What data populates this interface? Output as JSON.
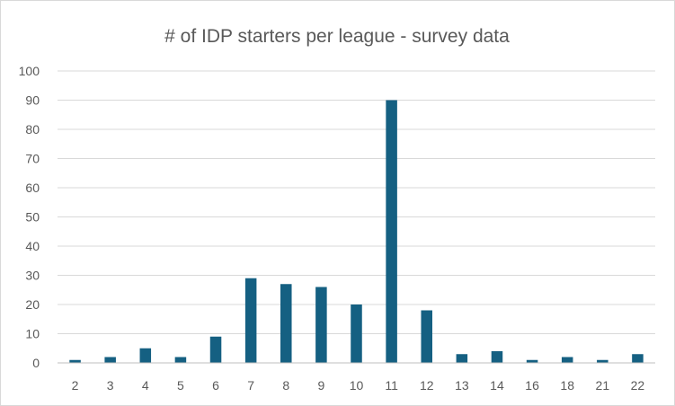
{
  "chart_data": {
    "type": "bar",
    "title": "# of IDP starters per league - survey data",
    "xlabel": "",
    "ylabel": "",
    "categories": [
      "2",
      "3",
      "4",
      "5",
      "6",
      "7",
      "8",
      "9",
      "10",
      "11",
      "12",
      "13",
      "14",
      "16",
      "18",
      "21",
      "22"
    ],
    "values": [
      1,
      2,
      5,
      2,
      9,
      29,
      27,
      26,
      20,
      90,
      18,
      3,
      4,
      1,
      2,
      1,
      3
    ],
    "ylim": [
      0,
      100
    ],
    "yticks": [
      "0",
      "10",
      "20",
      "30",
      "40",
      "50",
      "60",
      "70",
      "80",
      "90",
      "100"
    ],
    "grid": true,
    "legend": "none",
    "bar_color": "#156082"
  }
}
